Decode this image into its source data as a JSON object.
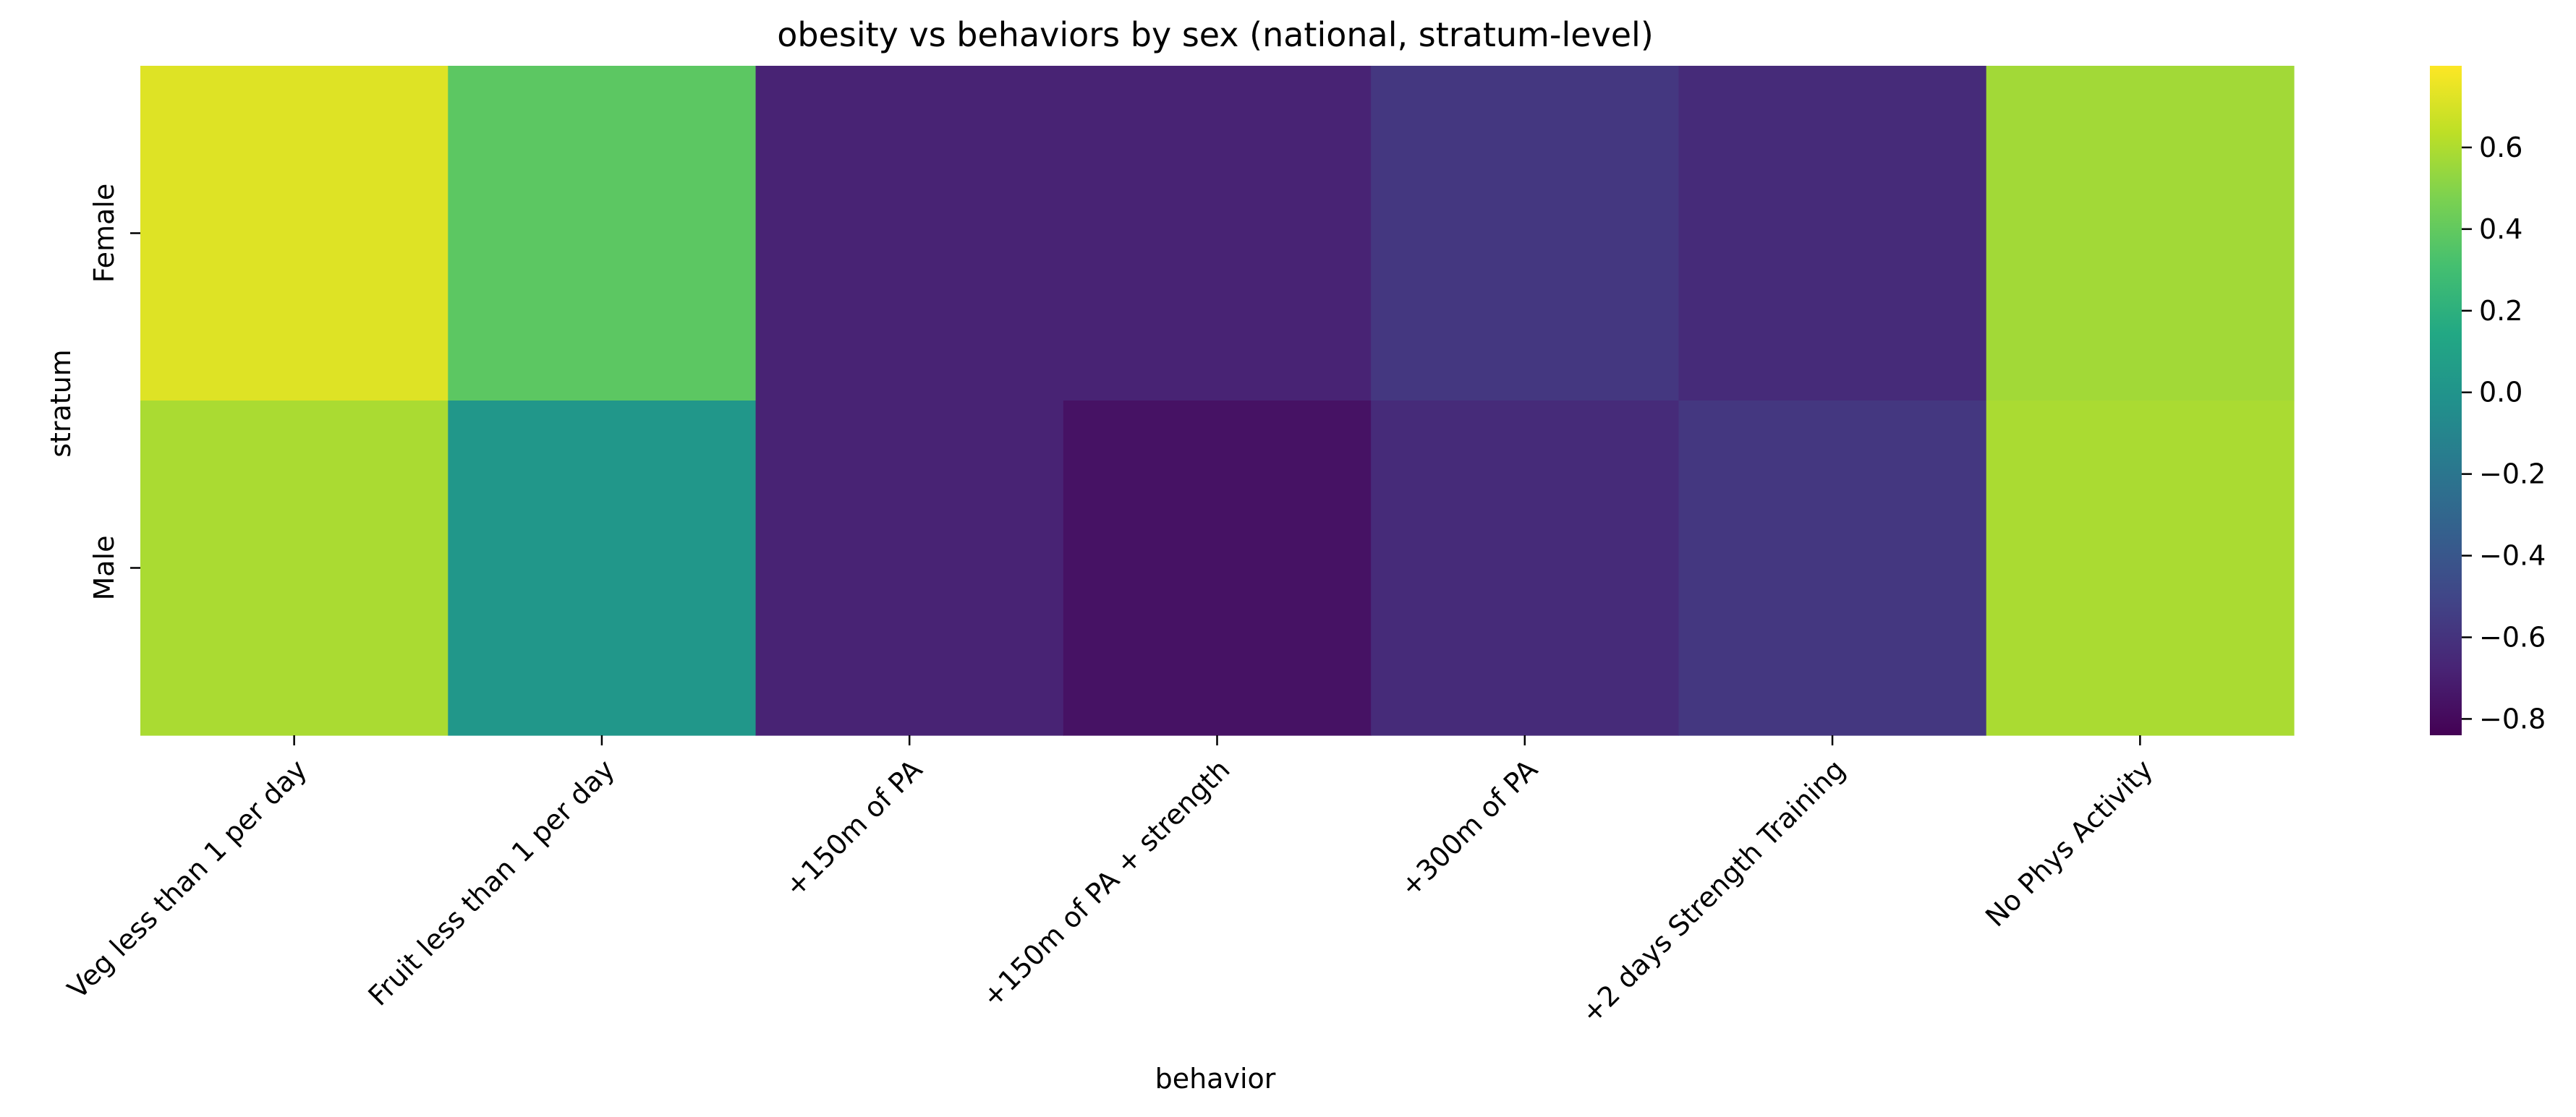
{
  "chart_data": {
    "type": "heatmap",
    "title": "obesity vs behaviors by sex (national, stratum-level)",
    "xlabel": "behavior",
    "ylabel": "stratum",
    "categories": [
      "Veg less than 1 per day",
      "Fruit less than 1 per day",
      "+150m of PA",
      "+150m of PA + strength",
      "+300m of PA",
      "+2 days Strength Training",
      "No Phys Activity"
    ],
    "rows": [
      "Female",
      "Male"
    ],
    "values": [
      [
        0.72,
        0.38,
        -0.68,
        -0.68,
        -0.58,
        -0.64,
        0.57
      ],
      [
        0.59,
        0.02,
        -0.68,
        -0.76,
        -0.64,
        -0.58,
        0.59
      ]
    ],
    "colorbar": {
      "colormap": "viridis",
      "vmin": -0.84,
      "vmax": 0.8,
      "ticks": [
        -0.8,
        -0.6,
        -0.4,
        -0.2,
        0.0,
        0.2,
        0.4,
        0.6
      ],
      "tick_labels": [
        "−0.8",
        "−0.6",
        "−0.4",
        "−0.2",
        "0.0",
        "0.2",
        "0.4",
        "0.6"
      ]
    },
    "grid": false,
    "legend": "none"
  }
}
